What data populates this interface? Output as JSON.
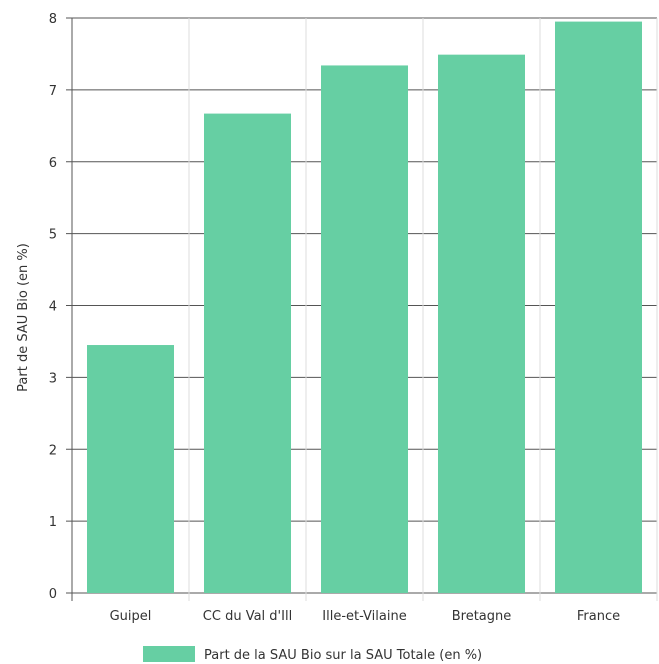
{
  "chart_data": {
    "type": "bar",
    "categories": [
      "Guipel",
      "CC du Val d'Ill",
      "Ille-et-Vilaine",
      "Bretagne",
      "France"
    ],
    "series": [
      {
        "name": "Part de la SAU Bio sur la SAU Totale (en %)",
        "values": [
          3.45,
          6.67,
          7.34,
          7.49,
          7.95
        ]
      }
    ],
    "ylabel": "Part de SAU Bio (en %)",
    "xlabel": "",
    "ylim": [
      0,
      8
    ],
    "yticks": [
      0,
      1,
      2,
      3,
      4,
      5,
      6,
      7,
      8
    ],
    "grid": true,
    "legend_position": "bottom",
    "colors": {
      "bar": "#66cfa3",
      "grid_major": "#555555",
      "grid_minor": "#dddddd",
      "text": "#333333"
    }
  }
}
